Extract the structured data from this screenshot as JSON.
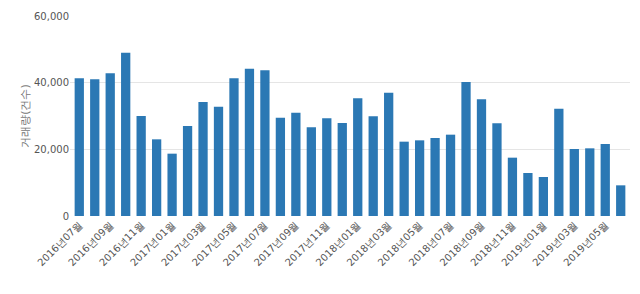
{
  "chart_data": {
    "type": "bar",
    "y_label": "거래량(건수)",
    "categories": [
      "2016년07월",
      null,
      "2016년09월",
      null,
      "2016년11월",
      null,
      "2017년01월",
      null,
      "2017년03월",
      null,
      "2017년05월",
      null,
      "2017년07월",
      null,
      "2017년09월",
      null,
      "2017년11월",
      null,
      "2018년01월",
      null,
      "2018년03월",
      null,
      "2018년05월",
      null,
      "2018년07월",
      null,
      "2018년09월",
      null,
      "2018년11월",
      null,
      "2019년01월",
      null,
      "2019년03월",
      null,
      "2019년05월",
      null
    ],
    "values": [
      41300,
      41000,
      42800,
      49000,
      30000,
      23000,
      18700,
      27000,
      34200,
      32800,
      41300,
      44200,
      43700,
      29500,
      31000,
      26600,
      29300,
      27900,
      35300,
      29900,
      37000,
      22300,
      22700,
      23400,
      24400,
      40200,
      35000,
      27800,
      17500,
      12900,
      11700,
      32200,
      20100,
      20300,
      21600,
      9200
    ],
    "color": "#2b78b4",
    "ylim": [
      0,
      60000
    ],
    "yticks": [
      0,
      {
        "value": 20000,
        "label": "20,000"
      },
      {
        "value": 40000,
        "label": "40,000"
      },
      {
        "value": 60000,
        "label": "60,000"
      }
    ],
    "grid": true
  }
}
